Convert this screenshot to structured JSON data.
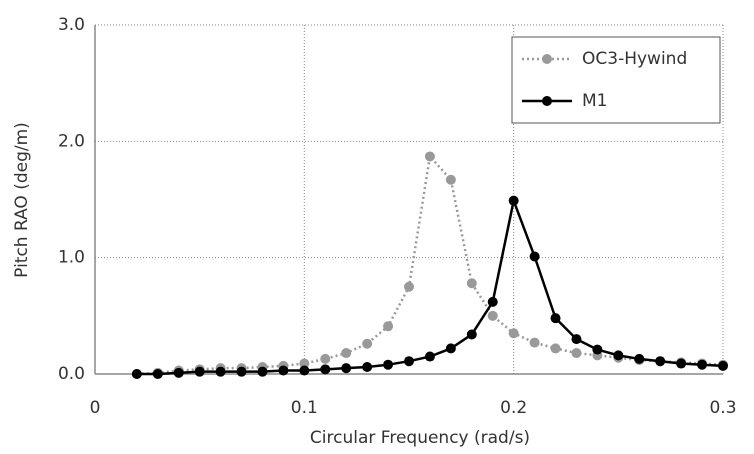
{
  "chart_data": {
    "type": "line",
    "x_label": "Circular Frequency (rad/s)",
    "y_label": "Pitch RAO (deg/m)",
    "x": [
      0.02,
      0.03,
      0.04,
      0.05,
      0.06,
      0.07,
      0.08,
      0.09,
      0.1,
      0.11,
      0.12,
      0.13,
      0.14,
      0.15,
      0.16,
      0.17,
      0.18,
      0.19,
      0.2,
      0.21,
      0.22,
      0.23,
      0.24,
      0.25,
      0.26,
      0.27,
      0.28,
      0.29,
      0.3
    ],
    "series": [
      {
        "name": "OC3-Hywind",
        "color": "#999999",
        "line_style": "dotted",
        "values": [
          0.0,
          0.01,
          0.03,
          0.04,
          0.05,
          0.05,
          0.06,
          0.07,
          0.09,
          0.13,
          0.18,
          0.26,
          0.41,
          0.75,
          1.87,
          1.67,
          0.78,
          0.5,
          0.35,
          0.27,
          0.22,
          0.18,
          0.16,
          0.14,
          0.12,
          0.11,
          0.1,
          0.09,
          0.08
        ]
      },
      {
        "name": "M1",
        "color": "#000000",
        "line_style": "solid",
        "values": [
          0.0,
          0.0,
          0.01,
          0.02,
          0.02,
          0.02,
          0.02,
          0.03,
          0.03,
          0.04,
          0.05,
          0.06,
          0.08,
          0.11,
          0.15,
          0.22,
          0.34,
          0.62,
          1.49,
          1.01,
          0.48,
          0.3,
          0.21,
          0.16,
          0.13,
          0.11,
          0.09,
          0.08,
          0.07
        ]
      }
    ],
    "xlim": [
      0,
      0.3
    ],
    "xticks": [
      0,
      0.1,
      0.2,
      0.3
    ],
    "ylim": [
      0,
      3
    ],
    "yticks": [
      {
        "value": 0,
        "label": "0.0"
      },
      {
        "value": 1,
        "label": "1.0"
      },
      {
        "value": 2,
        "label": "2.0"
      },
      {
        "value": 3,
        "label": "3.0"
      }
    ],
    "grid": true,
    "legend": "top-right"
  }
}
